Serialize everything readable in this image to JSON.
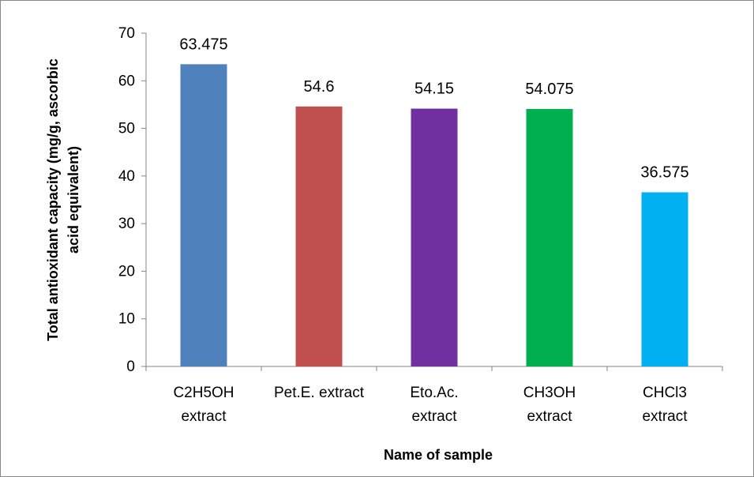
{
  "chart_data": {
    "type": "bar",
    "categories": [
      [
        "C2H5OH",
        "extract"
      ],
      [
        "Pet.E. extract"
      ],
      [
        "Eto.Ac.",
        "extract"
      ],
      [
        "CH3OH",
        "extract"
      ],
      [
        "CHCl3",
        "extract"
      ]
    ],
    "values": [
      63.475,
      54.6,
      54.15,
      54.075,
      36.575
    ],
    "data_labels": [
      "63.475",
      "54.6",
      "54.15",
      "54.075",
      "36.575"
    ],
    "colors": [
      "#4f81bd",
      "#c0504d",
      "#7030a0",
      "#00b050",
      "#00b0f0"
    ],
    "xlabel": "Name of sample",
    "ylabel": [
      "Total antioxidant capacity (mg/g, ascorbic",
      "acid equivalent)"
    ],
    "ylim": [
      0,
      70
    ],
    "yticks": [
      "0",
      "10",
      "20",
      "30",
      "40",
      "50",
      "60",
      "70"
    ],
    "grid": false,
    "legend": "none"
  }
}
